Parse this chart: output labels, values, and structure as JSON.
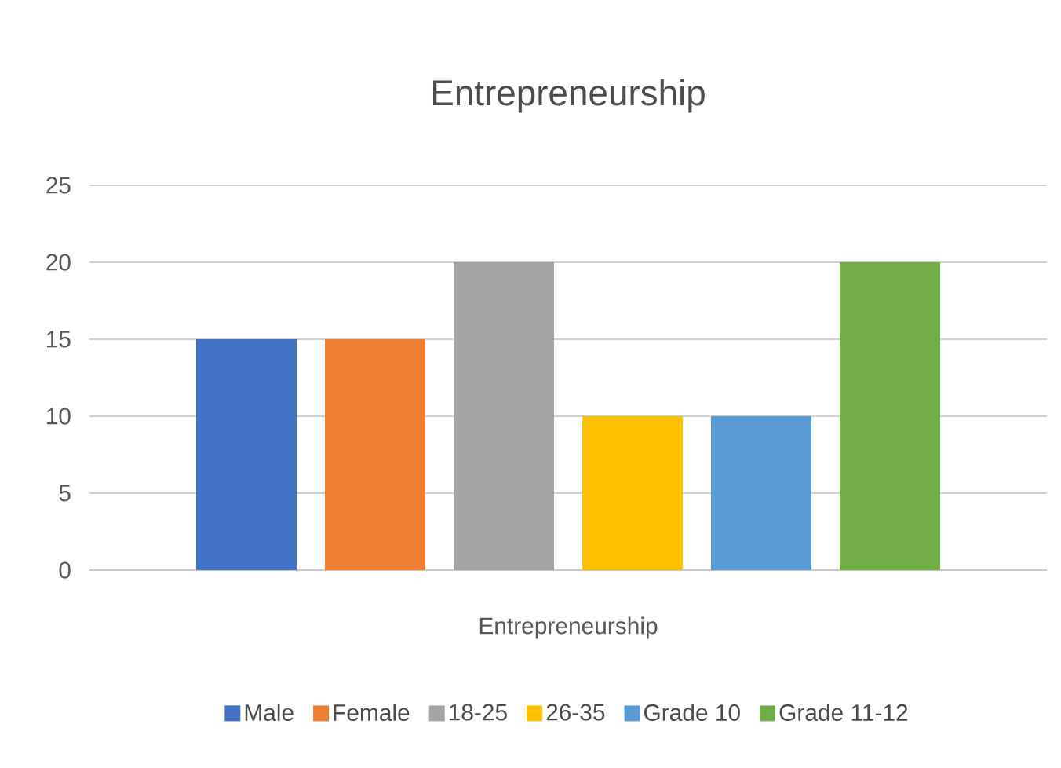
{
  "chart_data": {
    "type": "bar",
    "title": "Entrepreneurship",
    "categories": [
      "Entrepreneurship"
    ],
    "series": [
      {
        "name": "Male",
        "color": "#4472c4",
        "values": [
          15
        ]
      },
      {
        "name": "Female",
        "color": "#ed7d31",
        "values": [
          15
        ]
      },
      {
        "name": "18-25",
        "color": "#a5a5a5",
        "values": [
          20
        ]
      },
      {
        "name": "26-35",
        "color": "#ffc000",
        "values": [
          10
        ]
      },
      {
        "name": "Grade 10",
        "color": "#5b9bd5",
        "values": [
          10
        ]
      },
      {
        "name": "Grade 11-12",
        "color": "#70ad47",
        "values": [
          20
        ]
      }
    ],
    "ylim": [
      0,
      25
    ],
    "yticks": [
      0,
      5,
      10,
      15,
      20,
      25
    ],
    "grid": "y",
    "legend": "bottom"
  }
}
